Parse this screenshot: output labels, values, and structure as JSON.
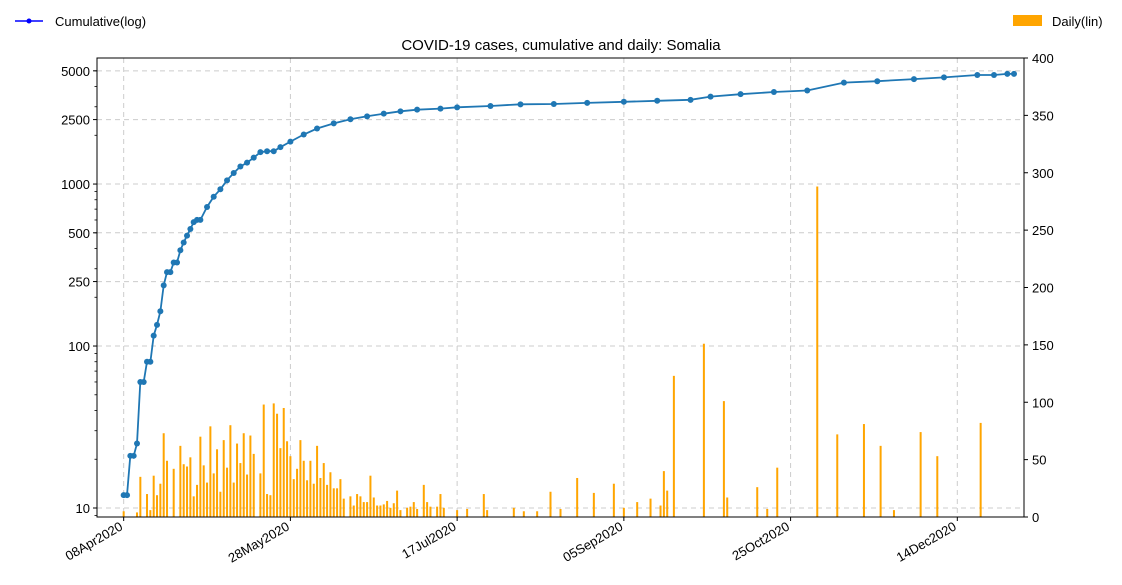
{
  "chart_data": {
    "type": "bar+line",
    "title": "COVID-19 cases, cumulative and daily: Somalia",
    "legend": {
      "cumulative_label": "Cumulative(log)",
      "daily_label": "Daily(lin)",
      "cumulative_placement": "top-left",
      "daily_placement": "top-right"
    },
    "x_axis": {
      "type": "date",
      "range": [
        "2020-03-31",
        "2021-01-03"
      ],
      "ticks": [
        "2020-04-08",
        "2020-05-28",
        "2020-07-17",
        "2020-09-05",
        "2020-10-25",
        "2020-12-14"
      ],
      "tick_labels": [
        "08Apr2020",
        "28May2020",
        "17Jul2020",
        "05Sep2020",
        "25Oct2020",
        "14Dec2020"
      ]
    },
    "y_left": {
      "scale": "log",
      "range": [
        8.8,
        6000
      ],
      "ticks": [
        10,
        100,
        250,
        500,
        1000,
        2500,
        5000
      ],
      "tick_labels": [
        "10",
        "100",
        "250",
        "500",
        "1000",
        "2500",
        "5000"
      ]
    },
    "y_right": {
      "scale": "linear",
      "range": [
        0,
        400
      ],
      "ticks": [
        0,
        50,
        100,
        150,
        200,
        250,
        300,
        350,
        400
      ],
      "tick_labels": [
        "0",
        "50",
        "100",
        "150",
        "200",
        "250",
        "300",
        "350",
        "400"
      ]
    },
    "grid": true,
    "colors": {
      "cumulative": "#1f77b4",
      "daily": "#ffa500",
      "legend_line": "#0000ff",
      "grid": "#cccccc"
    },
    "cumulative": {
      "name": "Cumulative(log)",
      "points": [
        [
          "2020-04-08",
          12
        ],
        [
          "2020-04-09",
          12
        ],
        [
          "2020-04-10",
          21
        ],
        [
          "2020-04-11",
          21
        ],
        [
          "2020-04-12",
          25
        ],
        [
          "2020-04-13",
          60
        ],
        [
          "2020-04-14",
          60
        ],
        [
          "2020-04-15",
          80
        ],
        [
          "2020-04-16",
          80
        ],
        [
          "2020-04-17",
          116
        ],
        [
          "2020-04-18",
          135
        ],
        [
          "2020-04-19",
          164
        ],
        [
          "2020-04-20",
          237
        ],
        [
          "2020-04-21",
          286
        ],
        [
          "2020-04-22",
          286
        ],
        [
          "2020-04-23",
          328
        ],
        [
          "2020-04-24",
          328
        ],
        [
          "2020-04-25",
          390
        ],
        [
          "2020-04-26",
          436
        ],
        [
          "2020-04-27",
          480
        ],
        [
          "2020-04-28",
          528
        ],
        [
          "2020-04-29",
          582
        ],
        [
          "2020-04-30",
          601
        ],
        [
          "2020-05-01",
          601
        ],
        [
          "2020-05-03",
          722
        ],
        [
          "2020-05-05",
          835
        ],
        [
          "2020-05-07",
          928
        ],
        [
          "2020-05-09",
          1054
        ],
        [
          "2020-05-11",
          1170
        ],
        [
          "2020-05-13",
          1284
        ],
        [
          "2020-05-15",
          1357
        ],
        [
          "2020-05-17",
          1455
        ],
        [
          "2020-05-19",
          1573
        ],
        [
          "2020-05-21",
          1594
        ],
        [
          "2020-05-23",
          1594
        ],
        [
          "2020-05-25",
          1689
        ],
        [
          "2020-05-28",
          1828
        ],
        [
          "2020-06-01",
          2023
        ],
        [
          "2020-06-05",
          2204
        ],
        [
          "2020-06-10",
          2368
        ],
        [
          "2020-06-15",
          2513
        ],
        [
          "2020-06-20",
          2618
        ],
        [
          "2020-06-25",
          2719
        ],
        [
          "2020-06-30",
          2812
        ],
        [
          "2020-07-05",
          2878
        ],
        [
          "2020-07-12",
          2924
        ],
        [
          "2020-07-17",
          2976
        ],
        [
          "2020-07-27",
          3031
        ],
        [
          "2020-08-05",
          3106
        ],
        [
          "2020-08-15",
          3119
        ],
        [
          "2020-08-25",
          3171
        ],
        [
          "2020-09-05",
          3220
        ],
        [
          "2020-09-15",
          3265
        ],
        [
          "2020-09-25",
          3310
        ],
        [
          "2020-10-01",
          3465
        ],
        [
          "2020-10-10",
          3588
        ],
        [
          "2020-10-20",
          3700
        ],
        [
          "2020-10-30",
          3778
        ],
        [
          "2020-11-10",
          4229
        ],
        [
          "2020-11-20",
          4312
        ],
        [
          "2020-12-01",
          4444
        ],
        [
          "2020-12-10",
          4557
        ],
        [
          "2020-12-20",
          4714
        ],
        [
          "2020-12-25",
          4714
        ],
        [
          "2020-12-29",
          4784
        ],
        [
          "2020-12-31",
          4784
        ]
      ]
    },
    "daily": {
      "name": "Daily(lin)",
      "bars": [
        [
          "2020-04-08",
          5
        ],
        [
          "2020-04-12",
          4
        ],
        [
          "2020-04-13",
          35
        ],
        [
          "2020-04-15",
          20
        ],
        [
          "2020-04-16",
          6
        ],
        [
          "2020-04-17",
          36
        ],
        [
          "2020-04-18",
          19
        ],
        [
          "2020-04-19",
          29
        ],
        [
          "2020-04-20",
          73
        ],
        [
          "2020-04-21",
          49
        ],
        [
          "2020-04-23",
          42
        ],
        [
          "2020-04-25",
          62
        ],
        [
          "2020-04-26",
          46
        ],
        [
          "2020-04-27",
          44
        ],
        [
          "2020-04-28",
          52
        ],
        [
          "2020-04-29",
          18
        ],
        [
          "2020-04-30",
          28
        ],
        [
          "2020-05-01",
          70
        ],
        [
          "2020-05-02",
          45
        ],
        [
          "2020-05-03",
          30
        ],
        [
          "2020-05-04",
          79
        ],
        [
          "2020-05-05",
          38
        ],
        [
          "2020-05-06",
          59
        ],
        [
          "2020-05-07",
          22
        ],
        [
          "2020-05-08",
          67
        ],
        [
          "2020-05-09",
          43
        ],
        [
          "2020-05-10",
          80
        ],
        [
          "2020-05-11",
          30
        ],
        [
          "2020-05-12",
          64
        ],
        [
          "2020-05-13",
          47
        ],
        [
          "2020-05-14",
          73
        ],
        [
          "2020-05-15",
          37
        ],
        [
          "2020-05-16",
          71
        ],
        [
          "2020-05-17",
          55
        ],
        [
          "2020-05-19",
          38
        ],
        [
          "2020-05-20",
          98
        ],
        [
          "2020-05-21",
          20
        ],
        [
          "2020-05-22",
          19
        ],
        [
          "2020-05-23",
          99
        ],
        [
          "2020-05-24",
          90
        ],
        [
          "2020-05-25",
          60
        ],
        [
          "2020-05-26",
          95
        ],
        [
          "2020-05-27",
          66
        ],
        [
          "2020-05-28",
          53
        ],
        [
          "2020-05-29",
          33
        ],
        [
          "2020-05-30",
          42
        ],
        [
          "2020-05-31",
          67
        ],
        [
          "2020-06-01",
          49
        ],
        [
          "2020-06-02",
          32
        ],
        [
          "2020-06-03",
          49
        ],
        [
          "2020-06-04",
          29
        ],
        [
          "2020-06-05",
          62
        ],
        [
          "2020-06-06",
          34
        ],
        [
          "2020-06-07",
          47
        ],
        [
          "2020-06-08",
          28
        ],
        [
          "2020-06-09",
          39
        ],
        [
          "2020-06-10",
          25
        ],
        [
          "2020-06-11",
          25
        ],
        [
          "2020-06-12",
          33
        ],
        [
          "2020-06-13",
          16
        ],
        [
          "2020-06-15",
          18
        ],
        [
          "2020-06-16",
          10
        ],
        [
          "2020-06-17",
          20
        ],
        [
          "2020-06-18",
          18
        ],
        [
          "2020-06-19",
          13
        ],
        [
          "2020-06-20",
          13
        ],
        [
          "2020-06-21",
          36
        ],
        [
          "2020-06-22",
          17
        ],
        [
          "2020-06-23",
          10
        ],
        [
          "2020-06-24",
          10
        ],
        [
          "2020-06-25",
          11
        ],
        [
          "2020-06-26",
          14
        ],
        [
          "2020-06-27",
          8
        ],
        [
          "2020-06-28",
          12
        ],
        [
          "2020-06-29",
          23
        ],
        [
          "2020-06-30",
          6
        ],
        [
          "2020-07-02",
          8
        ],
        [
          "2020-07-03",
          9
        ],
        [
          "2020-07-04",
          13
        ],
        [
          "2020-07-05",
          7
        ],
        [
          "2020-07-07",
          28
        ],
        [
          "2020-07-08",
          13
        ],
        [
          "2020-07-09",
          9
        ],
        [
          "2020-07-11",
          9
        ],
        [
          "2020-07-12",
          20
        ],
        [
          "2020-07-13",
          8
        ],
        [
          "2020-07-17",
          6
        ],
        [
          "2020-07-20",
          7
        ],
        [
          "2020-07-25",
          20
        ],
        [
          "2020-07-26",
          6
        ],
        [
          "2020-08-03",
          8
        ],
        [
          "2020-08-06",
          5
        ],
        [
          "2020-08-10",
          5
        ],
        [
          "2020-08-14",
          22
        ],
        [
          "2020-08-17",
          7
        ],
        [
          "2020-08-22",
          34
        ],
        [
          "2020-08-27",
          21
        ],
        [
          "2020-09-02",
          29
        ],
        [
          "2020-09-05",
          8
        ],
        [
          "2020-09-09",
          13
        ],
        [
          "2020-09-13",
          16
        ],
        [
          "2020-09-16",
          10
        ],
        [
          "2020-09-17",
          40
        ],
        [
          "2020-09-18",
          23
        ],
        [
          "2020-09-20",
          123
        ],
        [
          "2020-09-29",
          151
        ],
        [
          "2020-10-05",
          101
        ],
        [
          "2020-10-06",
          17
        ],
        [
          "2020-10-15",
          26
        ],
        [
          "2020-10-18",
          7
        ],
        [
          "2020-10-21",
          43
        ],
        [
          "2020-11-02",
          288
        ],
        [
          "2020-11-08",
          72
        ],
        [
          "2020-11-16",
          81
        ],
        [
          "2020-11-21",
          62
        ],
        [
          "2020-11-25",
          6
        ],
        [
          "2020-12-03",
          74
        ],
        [
          "2020-12-08",
          53
        ],
        [
          "2020-12-21",
          82
        ]
      ]
    }
  }
}
